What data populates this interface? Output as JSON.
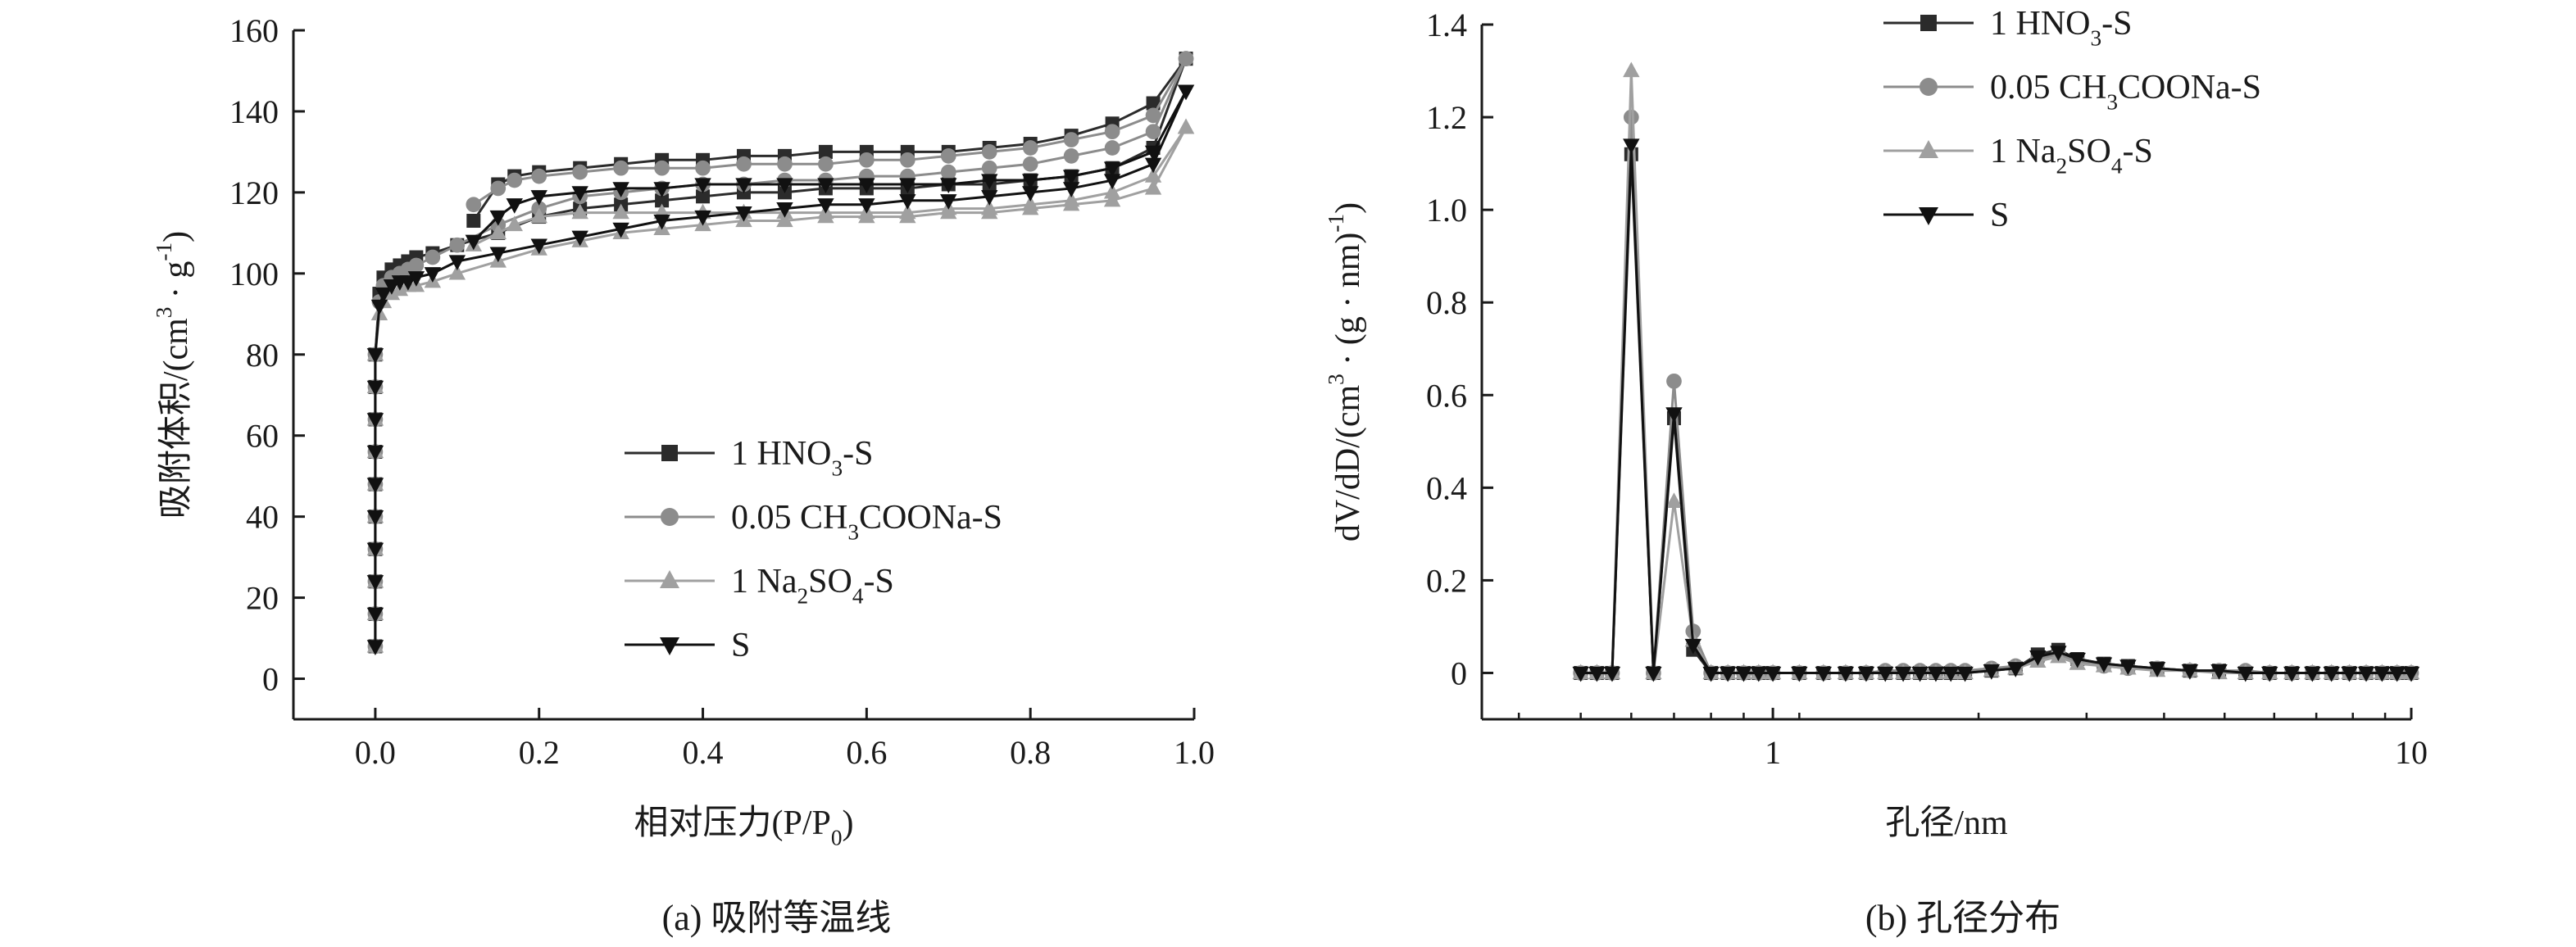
{
  "chart_data": [
    {
      "type": "line",
      "caption": "(a) 吸附等温线",
      "xlabel": "相对压力(P/P0)",
      "ylabel": "吸附体积/(cm3 · g-1)",
      "xlim": [
        -0.1,
        1.0
      ],
      "ylim": [
        -10,
        160
      ],
      "xticks": [
        0.0,
        0.2,
        0.4,
        0.6,
        0.8,
        1.0
      ],
      "xtick_labels": [
        "0.0",
        "0.2",
        "0.4",
        "0.6",
        "0.8",
        "1.0"
      ],
      "yticks": [
        0,
        20,
        40,
        60,
        80,
        100,
        120,
        140,
        160
      ],
      "ytick_labels": [
        "0",
        "20",
        "40",
        "60",
        "80",
        "100",
        "120",
        "140",
        "160"
      ],
      "legend_position": "center-right",
      "grid": false,
      "series": [
        {
          "name": "1 HNO3-S",
          "color": "#2b2b2b",
          "marker": "square",
          "adsorption": {
            "x": [
              0.0,
              0.0,
              0.0,
              0.0,
              0.0,
              0.0,
              0.0,
              0.0,
              0.0,
              0.0,
              0.005,
              0.01,
              0.02,
              0.03,
              0.04,
              0.05,
              0.07,
              0.1,
              0.15,
              0.2,
              0.25,
              0.3,
              0.35,
              0.4,
              0.45,
              0.5,
              0.55,
              0.6,
              0.65,
              0.7,
              0.75,
              0.8,
              0.85,
              0.9,
              0.95,
              0.99
            ],
            "y": [
              8,
              16,
              24,
              32,
              40,
              48,
              56,
              64,
              72,
              80,
              95,
              99,
              101,
              102,
              103,
              104,
              105,
              107,
              110,
              114,
              116,
              117,
              118,
              119,
              120,
              120,
              121,
              121,
              121,
              122,
              122,
              123,
              124,
              126,
              131,
              153
            ]
          },
          "desorption": {
            "x": [
              0.99,
              0.95,
              0.9,
              0.85,
              0.8,
              0.75,
              0.7,
              0.65,
              0.6,
              0.55,
              0.5,
              0.45,
              0.4,
              0.35,
              0.3,
              0.25,
              0.2,
              0.17,
              0.15,
              0.12
            ],
            "y": [
              153,
              142,
              137,
              134,
              132,
              131,
              130,
              130,
              130,
              130,
              129,
              129,
              128,
              128,
              127,
              126,
              125,
              124,
              122,
              113
            ]
          }
        },
        {
          "name": "0.05 CH3COONa-S",
          "color": "#8c8c8c",
          "marker": "circle",
          "adsorption": {
            "x": [
              0.0,
              0.0,
              0.0,
              0.0,
              0.0,
              0.0,
              0.0,
              0.0,
              0.0,
              0.0,
              0.005,
              0.01,
              0.02,
              0.03,
              0.04,
              0.05,
              0.07,
              0.1,
              0.15,
              0.2,
              0.25,
              0.3,
              0.35,
              0.4,
              0.45,
              0.5,
              0.55,
              0.6,
              0.65,
              0.7,
              0.75,
              0.8,
              0.85,
              0.9,
              0.95,
              0.99
            ],
            "y": [
              8,
              16,
              24,
              32,
              40,
              48,
              56,
              64,
              72,
              80,
              93,
              97,
              99,
              100,
              101,
              102,
              104,
              107,
              112,
              116,
              119,
              120,
              121,
              122,
              122,
              123,
              123,
              124,
              124,
              125,
              126,
              127,
              129,
              131,
              135,
              153
            ]
          },
          "desorption": {
            "x": [
              0.99,
              0.95,
              0.9,
              0.85,
              0.8,
              0.75,
              0.7,
              0.65,
              0.6,
              0.55,
              0.5,
              0.45,
              0.4,
              0.35,
              0.3,
              0.25,
              0.2,
              0.17,
              0.15,
              0.12
            ],
            "y": [
              153,
              139,
              135,
              133,
              131,
              130,
              129,
              128,
              128,
              127,
              127,
              127,
              126,
              126,
              126,
              125,
              124,
              123,
              121,
              117
            ]
          }
        },
        {
          "name": "1 Na2SO4-S",
          "color": "#a0a0a0",
          "marker": "triangle-up",
          "adsorption": {
            "x": [
              0.0,
              0.0,
              0.0,
              0.0,
              0.0,
              0.0,
              0.0,
              0.0,
              0.0,
              0.0,
              0.005,
              0.01,
              0.02,
              0.03,
              0.04,
              0.05,
              0.07,
              0.1,
              0.15,
              0.2,
              0.25,
              0.3,
              0.35,
              0.4,
              0.45,
              0.5,
              0.55,
              0.6,
              0.65,
              0.7,
              0.75,
              0.8,
              0.85,
              0.9,
              0.95,
              0.99
            ],
            "y": [
              8,
              16,
              24,
              32,
              40,
              48,
              56,
              64,
              72,
              80,
              90,
              93,
              95,
              96,
              97,
              97,
              98,
              100,
              103,
              106,
              108,
              110,
              111,
              112,
              113,
              113,
              114,
              114,
              114,
              115,
              115,
              116,
              117,
              118,
              121,
              136
            ]
          },
          "desorption": {
            "x": [
              0.99,
              0.95,
              0.9,
              0.85,
              0.8,
              0.75,
              0.7,
              0.65,
              0.6,
              0.55,
              0.5,
              0.45,
              0.4,
              0.35,
              0.3,
              0.25,
              0.2,
              0.17,
              0.15,
              0.12
            ],
            "y": [
              136,
              124,
              120,
              118,
              117,
              116,
              116,
              115,
              115,
              115,
              115,
              115,
              115,
              115,
              115,
              115,
              114,
              112,
              110,
              107
            ]
          }
        },
        {
          "name": "S",
          "color": "#111111",
          "marker": "triangle-down",
          "adsorption": {
            "x": [
              0.0,
              0.0,
              0.0,
              0.0,
              0.0,
              0.0,
              0.0,
              0.0,
              0.0,
              0.0,
              0.005,
              0.01,
              0.02,
              0.03,
              0.04,
              0.05,
              0.07,
              0.1,
              0.15,
              0.2,
              0.25,
              0.3,
              0.35,
              0.4,
              0.45,
              0.5,
              0.55,
              0.6,
              0.65,
              0.7,
              0.75,
              0.8,
              0.85,
              0.9,
              0.95,
              0.99
            ],
            "y": [
              8,
              16,
              24,
              32,
              40,
              48,
              56,
              64,
              72,
              80,
              92,
              95,
              97,
              98,
              98,
              99,
              100,
              103,
              105,
              107,
              109,
              111,
              113,
              114,
              115,
              116,
              117,
              117,
              118,
              118,
              119,
              120,
              121,
              123,
              127,
              145
            ]
          },
          "desorption": {
            "x": [
              0.99,
              0.95,
              0.9,
              0.85,
              0.8,
              0.75,
              0.7,
              0.65,
              0.6,
              0.55,
              0.5,
              0.45,
              0.4,
              0.35,
              0.3,
              0.25,
              0.2,
              0.17,
              0.15,
              0.12
            ],
            "y": [
              145,
              130,
              126,
              124,
              123,
              123,
              122,
              122,
              122,
              122,
              122,
              122,
              122,
              121,
              121,
              120,
              119,
              117,
              114,
              108
            ]
          }
        }
      ]
    },
    {
      "type": "line",
      "caption": "(b) 孔径分布",
      "xlabel": "孔径/nm",
      "ylabel": "dV/dD/(cm3 · (g · nm)-1)",
      "xscale": "log",
      "xlim": [
        0.35,
        10
      ],
      "ylim": [
        -0.1,
        1.4
      ],
      "xticks": [
        1,
        10
      ],
      "xtick_labels": [
        "1",
        "10"
      ],
      "yticks": [
        0,
        0.2,
        0.4,
        0.6,
        0.8,
        1.0,
        1.2,
        1.4
      ],
      "ytick_labels": [
        "0",
        "0.2",
        "0.4",
        "0.6",
        "0.8",
        "1.0",
        "1.2",
        "1.4"
      ],
      "legend_position": "top",
      "grid": false,
      "series": [
        {
          "name": "1 HNO3-S",
          "color": "#2b2b2b",
          "marker": "square",
          "x": [
            0.5,
            0.53,
            0.56,
            0.6,
            0.65,
            0.7,
            0.75,
            0.8,
            0.85,
            0.9,
            0.95,
            1.0,
            1.1,
            1.2,
            1.3,
            1.4,
            1.5,
            1.6,
            1.7,
            1.8,
            1.9,
            2.0,
            2.2,
            2.4,
            2.6,
            2.8,
            3.0,
            3.3,
            3.6,
            4.0,
            4.5,
            5.0,
            5.5,
            6.0,
            6.5,
            7.0,
            7.5,
            8.0,
            8.5,
            9.0,
            9.5,
            10.0
          ],
          "y": [
            0,
            0,
            0,
            1.12,
            0,
            0.55,
            0.05,
            0,
            0,
            0,
            0,
            0,
            0,
            0,
            0,
            0,
            0,
            0,
            0,
            0,
            0,
            0,
            0.005,
            0.01,
            0.04,
            0.05,
            0.03,
            0.02,
            0.015,
            0.01,
            0.005,
            0.005,
            0,
            0,
            0,
            0,
            0,
            0,
            0,
            0,
            0,
            0
          ]
        },
        {
          "name": "0.05 CH3COONa-S",
          "color": "#8c8c8c",
          "marker": "circle",
          "x": [
            0.5,
            0.53,
            0.56,
            0.6,
            0.65,
            0.7,
            0.75,
            0.8,
            0.85,
            0.9,
            0.95,
            1.0,
            1.1,
            1.2,
            1.3,
            1.4,
            1.5,
            1.6,
            1.7,
            1.8,
            1.9,
            2.0,
            2.2,
            2.4,
            2.6,
            2.8,
            3.0,
            3.3,
            3.6,
            4.0,
            4.5,
            5.0,
            5.5,
            6.0,
            6.5,
            7.0,
            7.5,
            8.0,
            8.5,
            9.0,
            9.5,
            10.0
          ],
          "y": [
            0,
            0,
            0,
            1.2,
            0,
            0.63,
            0.09,
            0,
            0,
            0,
            0,
            0,
            0,
            0,
            0,
            0,
            0.005,
            0.005,
            0.005,
            0.005,
            0.005,
            0.005,
            0.01,
            0.015,
            0.03,
            0.04,
            0.025,
            0.015,
            0.01,
            0.01,
            0.005,
            0.005,
            0.005,
            0,
            0,
            0,
            0,
            0,
            0,
            0,
            0,
            0
          ]
        },
        {
          "name": "1 Na2SO4-S",
          "color": "#a0a0a0",
          "marker": "triangle-up",
          "x": [
            0.5,
            0.53,
            0.56,
            0.6,
            0.65,
            0.7,
            0.75,
            0.8,
            0.85,
            0.9,
            0.95,
            1.0,
            1.1,
            1.2,
            1.3,
            1.4,
            1.5,
            1.6,
            1.7,
            1.8,
            1.9,
            2.0,
            2.2,
            2.4,
            2.6,
            2.8,
            3.0,
            3.3,
            3.6,
            4.0,
            4.5,
            5.0,
            5.5,
            6.0,
            6.5,
            7.0,
            7.5,
            8.0,
            8.5,
            9.0,
            9.5,
            10.0
          ],
          "y": [
            0,
            0,
            0,
            1.3,
            0,
            0.37,
            0.07,
            0,
            0,
            0,
            0,
            0,
            0,
            0,
            0,
            0,
            0,
            0,
            0,
            0,
            0,
            0,
            0.005,
            0.01,
            0.025,
            0.035,
            0.02,
            0.015,
            0.01,
            0.005,
            0.005,
            0,
            0,
            0,
            0,
            0,
            0,
            0,
            0,
            0,
            0,
            0
          ]
        },
        {
          "name": "S",
          "color": "#111111",
          "marker": "triangle-down",
          "x": [
            0.5,
            0.53,
            0.56,
            0.6,
            0.65,
            0.7,
            0.75,
            0.8,
            0.85,
            0.9,
            0.95,
            1.0,
            1.1,
            1.2,
            1.3,
            1.4,
            1.5,
            1.6,
            1.7,
            1.8,
            1.9,
            2.0,
            2.2,
            2.4,
            2.6,
            2.8,
            3.0,
            3.3,
            3.6,
            4.0,
            4.5,
            5.0,
            5.5,
            6.0,
            6.5,
            7.0,
            7.5,
            8.0,
            8.5,
            9.0,
            9.5,
            10.0
          ],
          "y": [
            0,
            0,
            0,
            1.14,
            0,
            0.56,
            0.06,
            0,
            0,
            0,
            0,
            0,
            0,
            0,
            0,
            0,
            0,
            0,
            0,
            0,
            0,
            0,
            0.005,
            0.01,
            0.035,
            0.045,
            0.03,
            0.02,
            0.015,
            0.01,
            0.005,
            0.005,
            0,
            0,
            0,
            0,
            0,
            0,
            0,
            0,
            0,
            0
          ]
        }
      ]
    }
  ]
}
